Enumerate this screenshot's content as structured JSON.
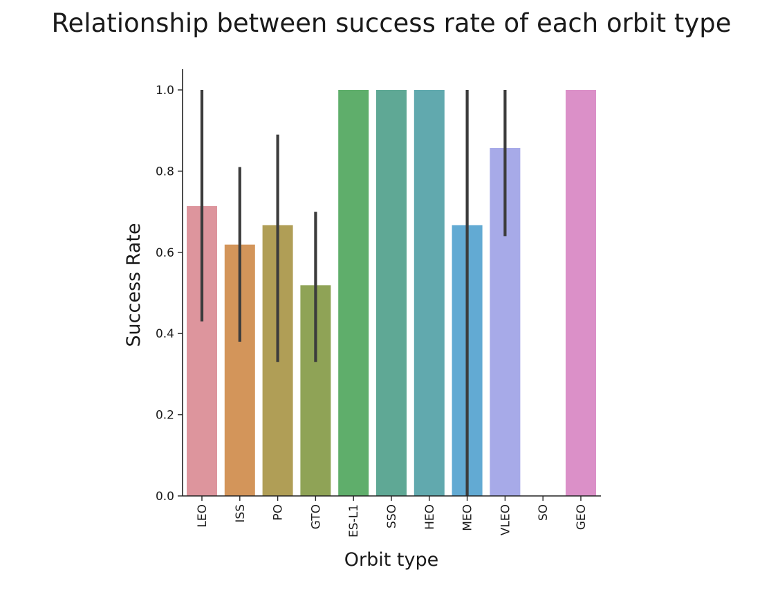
{
  "chart_data": {
    "type": "bar",
    "title": "Relationship between success rate of each orbit type",
    "xlabel": "Orbit type",
    "ylabel": "Success Rate",
    "ylim": [
      0,
      1.05
    ],
    "yticks": [
      "0.0",
      "0.2",
      "0.4",
      "0.6",
      "0.8",
      "1.0"
    ],
    "ytick_values": [
      0,
      0.2,
      0.4,
      0.6,
      0.8,
      1.0
    ],
    "categories": [
      "LEO",
      "ISS",
      "PO",
      "GTO",
      "ES-L1",
      "SSO",
      "HEO",
      "MEO",
      "VLEO",
      "SO",
      "GEO"
    ],
    "values": [
      0.714,
      0.619,
      0.667,
      0.519,
      1.0,
      1.0,
      1.0,
      0.667,
      0.857,
      0.0,
      1.0
    ],
    "error_low": [
      0.43,
      0.38,
      0.33,
      0.33,
      null,
      null,
      null,
      0.0,
      0.64,
      null,
      null
    ],
    "error_high": [
      1.0,
      0.81,
      0.89,
      0.7,
      null,
      null,
      null,
      1.0,
      1.0,
      null,
      null
    ],
    "colors": [
      "#dd959d",
      "#d3955a",
      "#b09e56",
      "#8fa356",
      "#5fae6b",
      "#5fa895",
      "#61a9ae",
      "#62aad3",
      "#a7aae8",
      "#c89cea",
      "#db90c8"
    ],
    "error_color": "#3c3c3c",
    "grid": false,
    "legend": "none"
  }
}
